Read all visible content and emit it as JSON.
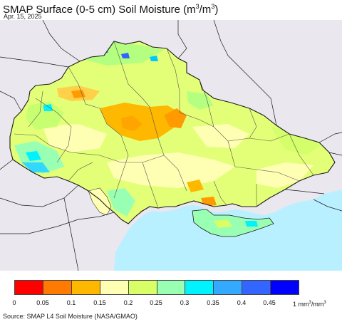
{
  "title": {
    "prefix": "SMAP Surface (0-5 cm) Soil Moisture (m",
    "exp1": "3",
    "mid": "/m",
    "exp2": "3",
    "suffix": ")"
  },
  "date": "Apr. 15, 2025",
  "source": "Source: SMAP L4 Soil Moisture (NASA/GMAO)",
  "colors": {
    "outside_land": "#ebe7ef",
    "sea": "#b9f0ff",
    "border": "#1a1a1a",
    "internal_border": "#555555"
  },
  "legend": {
    "colors": [
      "#ff0000",
      "#ff7a00",
      "#ffb800",
      "#ffffb3",
      "#d9ff66",
      "#99ffb3",
      "#00f2ff",
      "#33aaff",
      "#3366ff",
      "#0000ff"
    ],
    "ticks": [
      "0",
      "0.05",
      "0.1",
      "0.15",
      "0.2",
      "0.25",
      "0.3",
      "0.35",
      "0.4",
      "0.45"
    ],
    "unit_prefix": "1 mm",
    "unit_exp1": "3",
    "unit_mid": "/mm",
    "unit_exp2": "3"
  }
}
